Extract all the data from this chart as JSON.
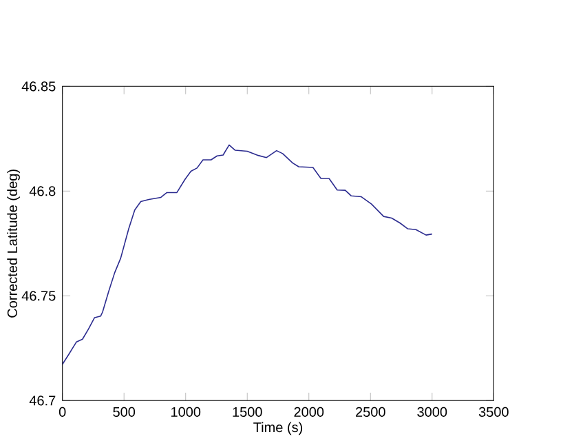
{
  "chart_data": {
    "type": "line",
    "xlabel": "Time (s)",
    "ylabel": "Corrected Latitude (deg)",
    "xlim": [
      0,
      3500
    ],
    "xticks": [
      0,
      500,
      1000,
      1500,
      2000,
      2500,
      3000,
      3500
    ],
    "ylim": [
      46.7,
      46.85
    ],
    "yticks": [
      46.7,
      46.75,
      46.8,
      46.85
    ],
    "grid": false,
    "series": [
      {
        "color": "#2b2b8f",
        "x": [
          0,
          49,
          114,
          163,
          212,
          261,
          310,
          326,
          375,
          424,
          473,
          538,
          587,
          636,
          701,
          799,
          848,
          929,
          995,
          1043,
          1092,
          1141,
          1206,
          1255,
          1304,
          1353,
          1402,
          1500,
          1590,
          1656,
          1738,
          1787,
          1869,
          1918,
          2033,
          2098,
          2164,
          2230,
          2295,
          2344,
          2426,
          2508,
          2607,
          2672,
          2738,
          2803,
          2869,
          2951,
          3000
        ],
        "values": [
          46.7173,
          46.7218,
          46.728,
          46.7293,
          46.7342,
          46.7396,
          46.7403,
          46.7423,
          46.752,
          46.761,
          46.768,
          46.782,
          46.791,
          46.795,
          46.796,
          46.797,
          46.7993,
          46.7993,
          46.8056,
          46.8095,
          46.811,
          46.8149,
          46.8149,
          46.8168,
          46.8172,
          46.822,
          46.8195,
          46.819,
          46.817,
          46.816,
          46.8193,
          46.8179,
          46.8134,
          46.8116,
          46.8113,
          46.806,
          46.806,
          46.8005,
          46.8004,
          46.7977,
          46.7973,
          46.7938,
          46.7879,
          46.7871,
          46.7848,
          46.782,
          46.7816,
          46.779,
          46.7795
        ]
      }
    ]
  }
}
